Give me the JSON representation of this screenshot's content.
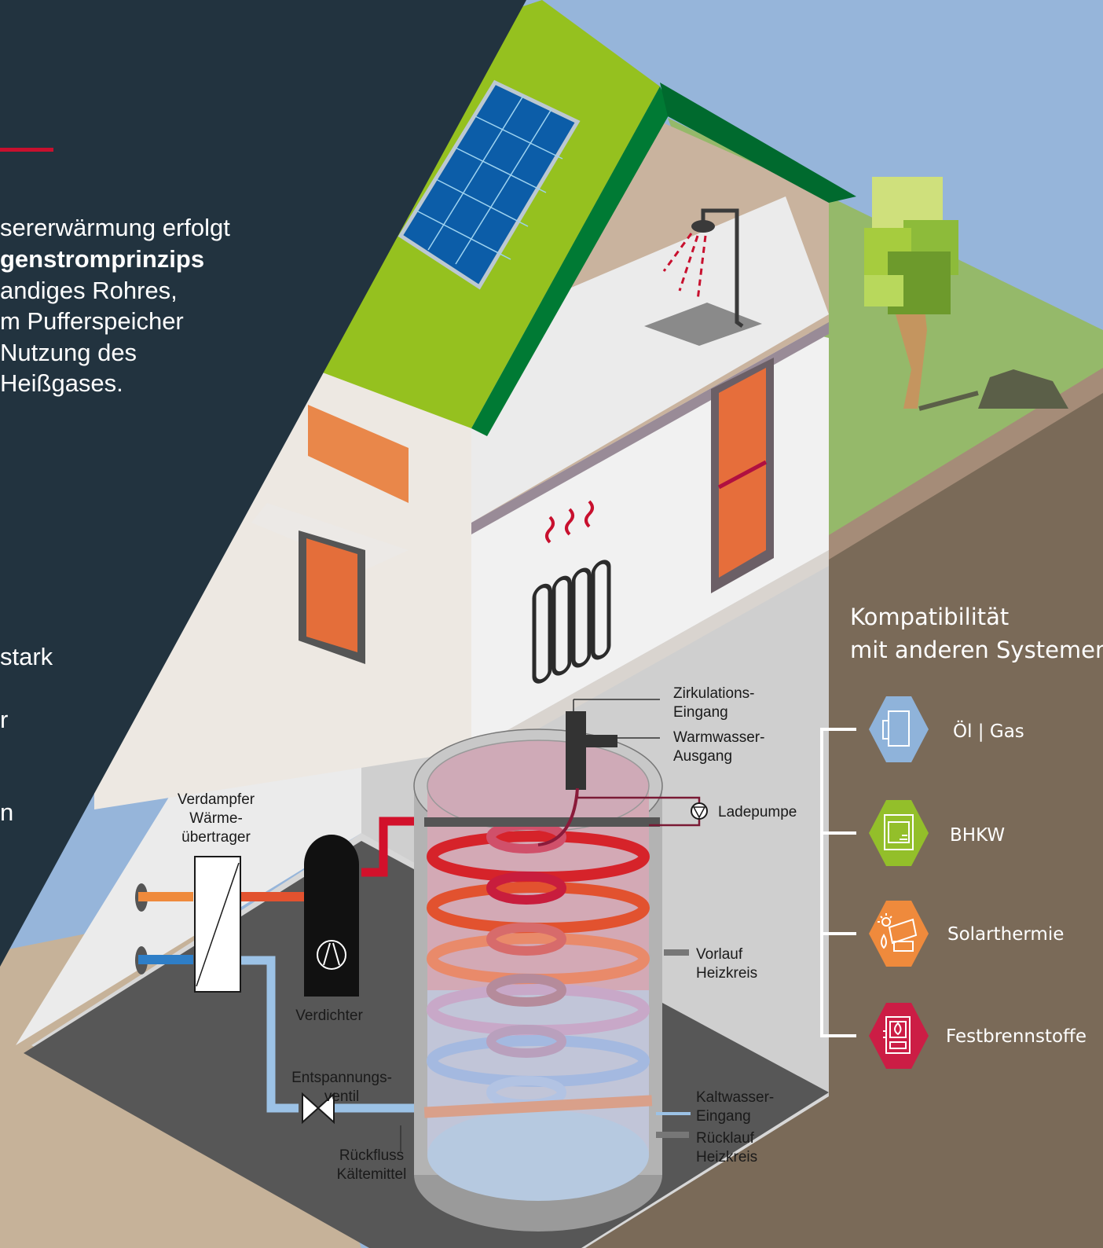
{
  "intro": {
    "lines": [
      "sererwärmung erfolgt",
      "genstromprinzips",
      "andiges Rohres,",
      "m Pufferspeicher",
      " Nutzung des",
      "Heißgases."
    ],
    "fragments": [
      " stark",
      "r",
      "n"
    ]
  },
  "diagram": {
    "evaporator": [
      "Verdampfer",
      "Wärme-",
      "übertrager"
    ],
    "compressor": "Verdichter",
    "valve": [
      "Entspannungs-",
      "ventil"
    ],
    "refrigerant_return": [
      "Rückfluss",
      "Kältemittel"
    ],
    "circulation_in": [
      "Zirkulations-",
      "Eingang"
    ],
    "hot_water_out": [
      "Warmwasser-",
      "Ausgang"
    ],
    "charge_pump": "Ladepumpe",
    "flow_heating": [
      "Vorlauf",
      "Heizkreis"
    ],
    "cold_water_in": [
      "Kaltwasser-",
      "Eingang"
    ],
    "return_heating": [
      "Rücklauf",
      "Heizkreis"
    ]
  },
  "compatibility": {
    "title": [
      "Kompatibilität",
      "mit anderen Systemen"
    ],
    "systems": [
      {
        "label": "Öl | Gas",
        "color": "#8fb3da",
        "icon": "oil-gas-boiler-icon"
      },
      {
        "label": "BHKW",
        "color": "#93bf2a",
        "icon": "chp-unit-icon"
      },
      {
        "label": "Solarthermie",
        "color": "#ef8a3c",
        "icon": "solar-thermal-icon"
      },
      {
        "label": "Festbrennstoffe",
        "color": "#cc1d45",
        "icon": "solid-fuel-stove-icon"
      }
    ]
  },
  "colors": {
    "panel": "#22333f",
    "accent": "#c8102e",
    "roof": "#95c11f",
    "ground": "#7a6a58",
    "grass": "#95b96a"
  }
}
